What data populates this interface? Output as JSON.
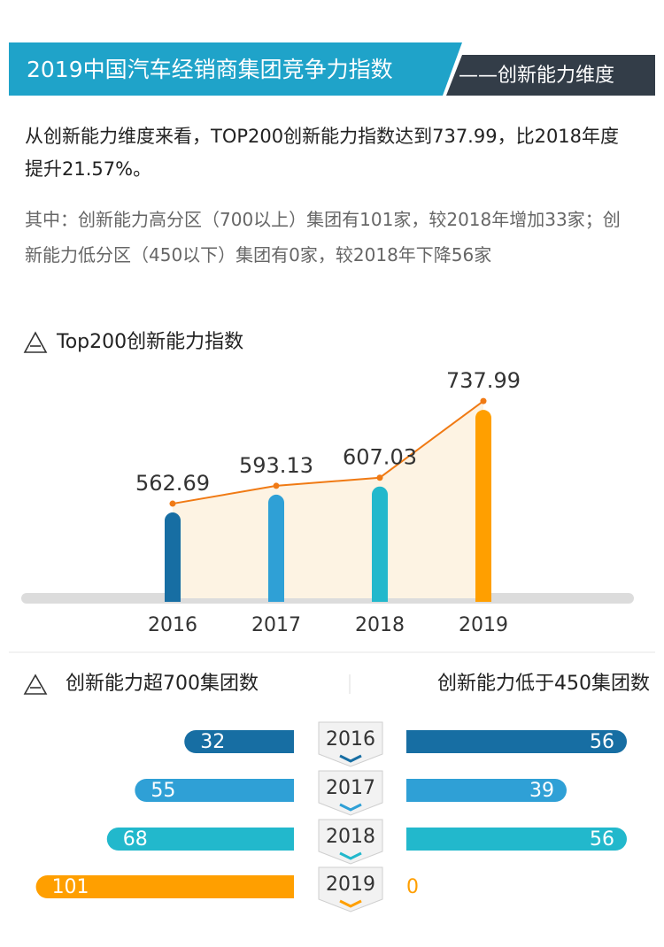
{
  "header": {
    "title": "2019中国汽车经销商集团竞争力指数",
    "subtitle": "——创新能力维度"
  },
  "summary": "从创新能力维度来看，TOP200创新能力指数达到737.99，比2018年度提升21.57%。",
  "note": "其中：创新能力高分区（700以上）集团有101家，较2018年增加33家；创新能力低分区（450以下）集团有0家，较2018年下降56家",
  "chart_data": [
    {
      "type": "bar-line",
      "title": "Top200创新能力指数",
      "categories": [
        "2016",
        "2017",
        "2018",
        "2019"
      ],
      "values": [
        562.69,
        593.13,
        607.03,
        737.99
      ],
      "colors": [
        "#176ea3",
        "#2fa0d6",
        "#22b8cc",
        "#ff9f00"
      ],
      "line_color": "#f07a14",
      "ylim": [
        410,
        770
      ]
    },
    {
      "type": "butterfly",
      "categories": [
        "2016",
        "2017",
        "2018",
        "2019"
      ],
      "colors": [
        "#176ea3",
        "#2fa0d6",
        "#22b8cc",
        "#ff9f00"
      ],
      "series": [
        {
          "name": "创新能力超700集团数",
          "values": [
            32,
            55,
            68,
            101
          ]
        },
        {
          "name": "创新能力低于450集团数",
          "values": [
            56,
            39,
            56,
            0
          ]
        }
      ]
    }
  ]
}
